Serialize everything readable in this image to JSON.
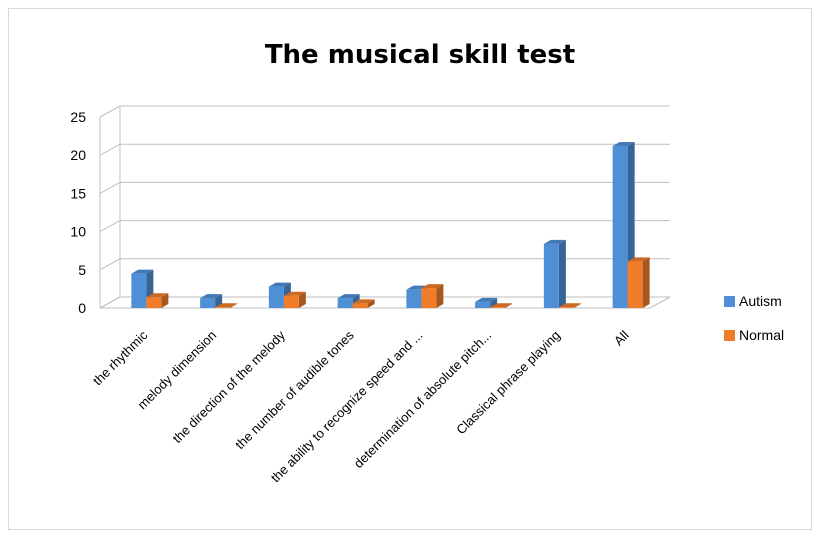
{
  "chart_data": {
    "type": "bar",
    "title": "The musical skill test",
    "categories": [
      "the rhythmic",
      "melody dimension",
      "the direction of the melody",
      "the number of audible tones",
      "the ability to recognize speed and ...",
      "determination of  absolute pitch...",
      "Classical phrase playing",
      "All"
    ],
    "series": [
      {
        "name": "Autism",
        "values": [
          4.5,
          1.3,
          2.8,
          1.3,
          2.4,
          0.8,
          8.4,
          21.2
        ],
        "color": "#4f8fd6"
      },
      {
        "name": "Normal",
        "values": [
          1.4,
          0.1,
          1.6,
          0.6,
          2.6,
          0.1,
          0.1,
          6.1
        ],
        "color": "#f07c2a"
      }
    ],
    "yticks": [
      0,
      5,
      10,
      15,
      20,
      25
    ],
    "ylim": [
      0,
      25
    ],
    "legend_position": "right",
    "grid": true,
    "style": "3d-clustered-column"
  }
}
